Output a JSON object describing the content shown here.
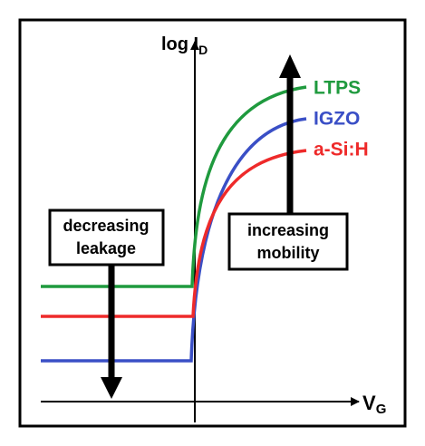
{
  "y_axis_label": {
    "main": "log I",
    "sub": "D"
  },
  "x_axis_label": {
    "main": "V",
    "sub": "G"
  },
  "curves": [
    {
      "label": "LTPS",
      "color": "#1f9a3e"
    },
    {
      "label": "IGZO",
      "color": "#3a4fc6"
    },
    {
      "label": "a-Si:H",
      "color": "#ee2a2a"
    }
  ],
  "boxes": [
    {
      "lines": [
        "decreasing",
        "leakage"
      ]
    },
    {
      "lines": [
        "increasing",
        "mobility"
      ]
    }
  ]
}
